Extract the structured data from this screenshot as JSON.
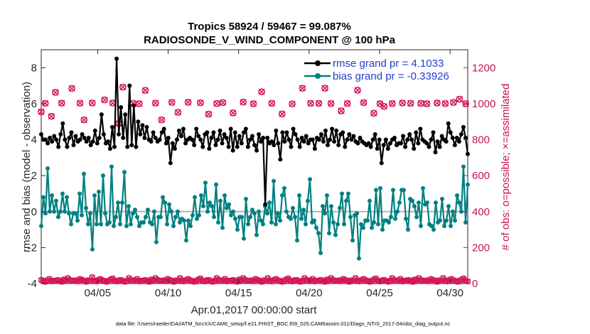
{
  "chart_data": {
    "type": "line",
    "title": "Tropics 58924 / 59467 = 99.087%",
    "subtitle": "RADIOSONDE_V_WIND_COMPONENT @ 100 hPa",
    "xlabel": "Apr.01,2017 00:00:00 start",
    "ylabel": "rmse and bias (model - observation)",
    "ylabel_right": "# of obs: o=possible; ×=assimilated",
    "footer": "data file: /Users/raeder/DAI/ATM_forcXX/CAM6_setup/f.e21.FHIST_BGC.f09_025.CAM6assim.011/Diags_NTrS_2017-04/obs_diag_output.nc",
    "xlim": [
      1,
      31.25
    ],
    "ylim": [
      -4,
      9
    ],
    "ylim_right": [
      0,
      1300
    ],
    "x_ticks": [
      5,
      10,
      15,
      20,
      25,
      30
    ],
    "x_tick_labels": [
      "04/05",
      "04/10",
      "04/15",
      "04/20",
      "04/25",
      "04/30"
    ],
    "y_ticks": [
      -4,
      -2,
      0,
      2,
      4,
      6,
      8
    ],
    "y_tick_labels": [
      "-4",
      "-2",
      "0",
      "2",
      "4",
      "6",
      "8"
    ],
    "y_ticks_right": [
      0,
      200,
      400,
      600,
      800,
      1000,
      1200
    ],
    "y_tick_labels_right": [
      "0",
      "200",
      "400",
      "600",
      "800",
      "1000",
      "1200"
    ],
    "legend": [
      "rmse grand pr = 4.1033",
      "bias grand pr = -0.33926"
    ],
    "zero_line": 0,
    "colors": {
      "rmse": "#000000",
      "bias": "#008080",
      "obs": "#d4145a",
      "legend_text": "#1f3fc8",
      "zero": "#b3b3b3"
    },
    "series": [
      {
        "name": "rmse",
        "axis": "left",
        "color": "#000000",
        "values": [
          4.3,
          4.0,
          4.0,
          3.8,
          4.1,
          3.9,
          4.2,
          4.0,
          3.6,
          4.3,
          4.9,
          4.0,
          3.6,
          4.1,
          4.4,
          3.7,
          4.2,
          3.9,
          4.0,
          4.3,
          4.1,
          3.9,
          4.1,
          3.7,
          3.9,
          4.5,
          3.8,
          4.1,
          5.4,
          4.3,
          3.8,
          3.9,
          3.5,
          4.7,
          3.6,
          8.5,
          4.3,
          5.8,
          4.1,
          5.4,
          3.6,
          7.0,
          3.7,
          5.9,
          3.6,
          5.0,
          4.3,
          4.8,
          4.1,
          4.7,
          4.0,
          3.9,
          4.4,
          4.1,
          3.9,
          4.0,
          4.4,
          4.6,
          3.8,
          4.1,
          2.7,
          3.8,
          3.5,
          4.0,
          4.5,
          4.2,
          4.6,
          3.8,
          4.0,
          4.1,
          4.0,
          3.7,
          4.6,
          4.2,
          4.0,
          3.6,
          4.3,
          4.4,
          3.5,
          4.1,
          4.4,
          3.7,
          4.0,
          4.5,
          3.8,
          4.3,
          4.1,
          3.6,
          4.6,
          3.4,
          4.4,
          3.6,
          4.2,
          3.8,
          4.4,
          4.6,
          3.6,
          4.0,
          4.2,
          3.7,
          3.4,
          4.3,
          3.9,
          4.1,
          0.4,
          4.1,
          3.8,
          3.9,
          3.7,
          4.5,
          3.8,
          2.9,
          4.4,
          3.9,
          4.4,
          4.0,
          3.6,
          4.6,
          4.3,
          4.0,
          3.6,
          4.1,
          3.9,
          4.2,
          3.8,
          4.0,
          4.0,
          3.5,
          4.1,
          4.0,
          4.3,
          3.9,
          4.5,
          3.7,
          4.0,
          4.6,
          3.9,
          4.5,
          3.7,
          4.3,
          4.4,
          3.6,
          4.0,
          4.3,
          4.0,
          4.2,
          3.9,
          3.8,
          4.1,
          3.9,
          3.8,
          3.7,
          3.8,
          3.6,
          4.0,
          4.3,
          3.5,
          4.0,
          2.7,
          3.7,
          4.0,
          3.5,
          3.8,
          4.0,
          4.1,
          3.7,
          3.8,
          3.8,
          4.2,
          3.6,
          4.0,
          4.3,
          4.0,
          3.5,
          4.4,
          3.8,
          4.6,
          4.0,
          3.9,
          3.8,
          3.6,
          4.0,
          4.4,
          3.3,
          3.9,
          3.6,
          4.2,
          4.0,
          3.9,
          4.9,
          4.4,
          4.1,
          3.7,
          4.1,
          3.9,
          4.3,
          4.7,
          4.1,
          3.2
        ]
      },
      {
        "name": "bias",
        "axis": "left",
        "color": "#008080",
        "values": [
          -0.8,
          0.8,
          -0.1,
          2.4,
          0.0,
          0.9,
          0.0,
          0.6,
          -0.3,
          0.0,
          1.0,
          0.0,
          0.8,
          -0.1,
          -0.7,
          -0.1,
          -0.1,
          -0.5,
          1.0,
          -0.2,
          2.1,
          0.2,
          -0.7,
          -0.1,
          -2.1,
          0.9,
          -0.7,
          1.1,
          -0.7,
          2.0,
          -0.1,
          -0.7,
          -0.6,
          2.5,
          -0.8,
          -0.3,
          0.5,
          -0.7,
          0.5,
          2.2,
          -0.8,
          0.3,
          -0.7,
          -0.1,
          0.1,
          -0.3,
          -0.8,
          -0.6,
          -0.6,
          -0.3,
          0.1,
          -0.6,
          -0.7,
          0.0,
          -1.7,
          -0.3,
          -0.3,
          0.8,
          0.5,
          -0.7,
          0.4,
          0.0,
          -0.8,
          -0.3,
          0.0,
          -0.6,
          -0.4,
          -0.5,
          -1.6,
          -0.5,
          -0.8,
          -0.2,
          0.8,
          -0.4,
          -0.2,
          0.9,
          0.3,
          1.6,
          0.0,
          0.5,
          0.3,
          -0.3,
          1.5,
          -0.6,
          0.6,
          -0.9,
          0.9,
          0.2,
          0.4,
          -0.2,
          0.0,
          -0.4,
          -1.0,
          -0.3,
          -0.3,
          -1.5,
          0.7,
          -0.7,
          -0.3,
          0.1,
          -0.1,
          -1.3,
          0.0,
          -0.5,
          -0.7,
          0.3,
          -0.1,
          0.5,
          -0.6,
          1.7,
          -0.7,
          -0.1,
          -0.5,
          0.9,
          1.3,
          0.0,
          -0.3,
          -0.4,
          0.2,
          -0.3,
          -1.6,
          0.9,
          -0.4,
          0.1,
          -0.7,
          0.6,
          1.8,
          -0.6,
          -0.5,
          -0.9,
          -1.2,
          -2.3,
          0.3,
          -0.1,
          0.9,
          -1.2,
          0.3,
          -0.6,
          -1.3,
          -0.7,
          0.2,
          1.0,
          -0.7,
          0.6,
          1.0,
          -0.3,
          -1.6,
          -0.2,
          -0.1,
          -2.6,
          -0.7,
          -0.9,
          -0.5,
          -0.5,
          0.6,
          -0.9,
          -0.6,
          1.2,
          -0.7,
          1.3,
          -1.0,
          -0.5,
          -0.5,
          -0.6,
          -0.3,
          1.2,
          -0.4,
          0.0,
          0.5,
          1.2,
          1.2,
          -0.4,
          -1.0,
          0.7,
          0.6,
          0.3,
          -0.3,
          0.5,
          -0.8,
          1.3,
          0.4,
          0.5,
          -0.7,
          -0.8,
          -1.0,
          0.5,
          -0.6,
          -0.5,
          0.7,
          -0.8,
          -0.5,
          0.3,
          -0.8,
          0.0,
          -0.5,
          0.9,
          0.5,
          0.0,
          2.5,
          -0.6,
          1.5
        ]
      },
      {
        "name": "obs_possible_high",
        "axis": "right",
        "color": "#d4145a",
        "marker": "o",
        "values": [
          955,
          0,
          1002,
          0,
          0,
          930,
          0,
          1063,
          0,
          0,
          1003,
          0,
          0,
          0,
          0,
          1085,
          0,
          0,
          0,
          1003,
          0,
          910,
          0,
          0,
          0,
          1004,
          0,
          0,
          0,
          0,
          0,
          1021,
          0,
          0,
          0,
          1004,
          0,
          0,
          890,
          0,
          1092,
          0,
          0,
          0,
          0,
          1002,
          0,
          0,
          1000,
          0,
          0,
          1074,
          0,
          0,
          0,
          0,
          1003,
          0,
          0,
          910,
          0,
          0,
          0,
          0,
          1007,
          0,
          0,
          952,
          0,
          0,
          0,
          0,
          1008,
          0,
          0,
          0,
          0,
          0,
          1005,
          0,
          0,
          0,
          942,
          0,
          0,
          0,
          1001,
          0,
          0,
          1006,
          0,
          0,
          0,
          0,
          949,
          0,
          0,
          0,
          0,
          1009,
          0,
          0,
          0,
          0,
          1000,
          0,
          0,
          0,
          1066,
          0,
          0,
          0,
          0,
          1002,
          0,
          0,
          0,
          0,
          943,
          0,
          0,
          0,
          0,
          999,
          0,
          0,
          0,
          0,
          1086,
          0,
          0,
          0,
          1002,
          0,
          0,
          0,
          1002,
          0,
          0,
          1086,
          0,
          0,
          1001,
          0,
          0,
          0,
          0,
          960,
          0,
          0,
          1001,
          0,
          0,
          0,
          0,
          1075,
          0,
          0,
          1006,
          0,
          0,
          0,
          0,
          947,
          0,
          0,
          1000,
          0,
          985,
          0,
          0,
          0,
          1001,
          0,
          0,
          0,
          0,
          1004,
          0,
          0,
          0,
          1002,
          0,
          0,
          0,
          0,
          1002,
          0,
          0,
          1000,
          0,
          0,
          0,
          0,
          1004,
          0,
          0,
          0,
          1001,
          0,
          0,
          0,
          1007,
          0,
          0,
          1025,
          0,
          0,
          1000,
          0
        ],
        "note": "0 = no observation at that time step"
      },
      {
        "name": "obs_assimilated_low",
        "axis": "right",
        "color": "#d4145a",
        "marker": "x",
        "values": [
          20,
          15,
          10,
          18,
          25,
          12,
          16,
          14,
          20,
          15,
          10,
          22,
          18,
          30,
          20,
          16,
          14,
          18,
          12,
          25,
          20,
          15,
          10,
          18,
          14,
          35,
          16,
          12,
          20,
          25,
          18,
          14,
          10,
          16,
          22,
          28,
          15,
          12,
          18,
          20,
          14,
          10,
          16,
          30,
          20,
          14,
          18,
          25,
          12,
          16,
          14,
          20,
          15,
          10,
          22,
          18,
          30,
          20,
          16,
          14,
          18,
          12,
          25,
          20,
          15,
          10,
          18,
          14,
          30,
          16,
          12,
          20,
          25,
          18,
          14,
          10,
          16,
          22,
          28,
          15,
          12,
          18,
          20,
          14,
          10,
          16,
          30,
          20,
          14,
          18,
          25,
          12,
          16,
          14,
          20,
          15,
          10,
          22,
          18,
          30,
          20,
          16,
          14,
          18,
          12,
          25,
          20,
          15,
          10,
          18,
          14,
          30,
          16,
          12,
          20,
          25,
          18,
          14,
          10,
          16,
          22,
          28,
          15,
          12,
          18,
          20,
          14,
          10,
          16,
          30,
          20,
          14,
          18,
          25,
          12,
          16,
          14,
          20,
          15,
          10,
          22,
          18,
          30,
          20,
          16,
          14,
          18,
          12,
          25,
          20,
          15,
          10,
          18,
          14,
          30,
          16,
          12,
          20,
          25,
          18,
          14,
          10,
          16,
          22,
          28,
          15,
          12,
          18,
          20,
          14,
          10,
          16,
          30,
          20,
          14,
          18,
          25,
          12,
          16,
          14,
          20,
          15,
          10,
          22,
          18,
          30,
          20,
          16,
          14,
          18,
          12,
          25,
          20,
          15,
          10,
          18,
          14,
          30,
          16,
          12,
          20,
          25,
          18,
          14,
          10,
          16,
          22,
          28,
          15,
          12
        ]
      }
    ]
  }
}
